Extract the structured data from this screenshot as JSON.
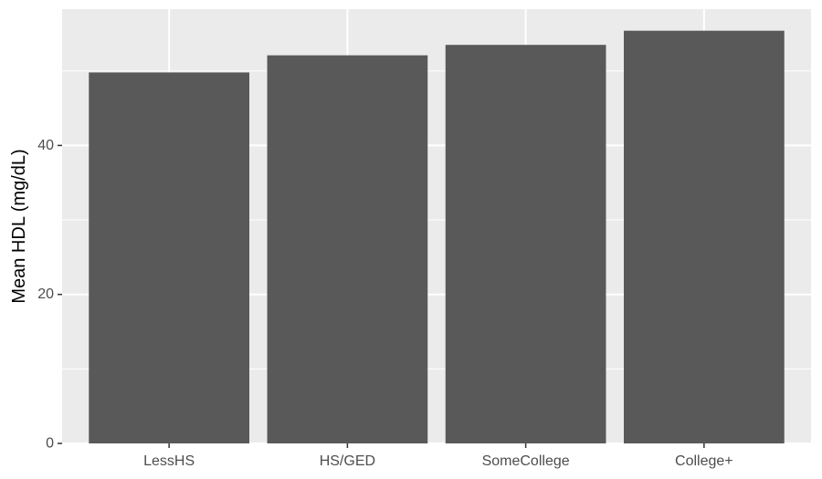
{
  "chart_data": {
    "type": "bar",
    "title": "",
    "xlabel": "",
    "ylabel": "Mean HDL (mg/dL)",
    "categories": [
      "LessHS",
      "HS/GED",
      "SomeCollege",
      "College+"
    ],
    "values": [
      49.8,
      52.1,
      53.5,
      55.4
    ],
    "ylim": [
      0,
      58.3
    ],
    "yticks": [
      0,
      20,
      40
    ],
    "y_minor_ticks": [
      10,
      30,
      50
    ],
    "grid": true,
    "legend": "none",
    "colors": {
      "bar": "#595959",
      "panel": "#ebebeb",
      "grid": "#ffffff",
      "tick": "#333333"
    }
  }
}
